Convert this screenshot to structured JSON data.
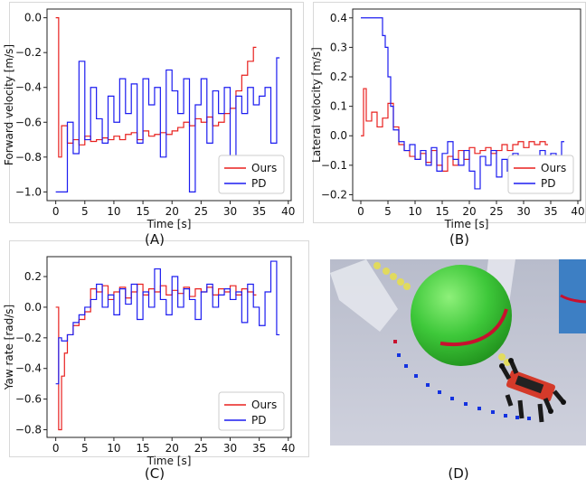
{
  "captions": [
    "(A)",
    "(B)",
    "(C)",
    "(D)"
  ],
  "scene": {
    "description_label": "",
    "colors": {
      "background": "#c9cbd9",
      "sphere": "#3ec83a",
      "robot": "#d43a2a",
      "path": "#c8102e",
      "planned_points": "#1432e0",
      "trail": "#e8e04a",
      "pillar": "#3d7fc4"
    }
  },
  "chart_data": [
    {
      "type": "line",
      "title": "",
      "xlabel": "Time [s]",
      "ylabel": "Forward velocity [m/s]",
      "xlim": [
        -1.5,
        40.5
      ],
      "ylim": [
        -1.05,
        0.05
      ],
      "xticks": [
        "0",
        "5",
        "10",
        "15",
        "20",
        "25",
        "30",
        "35",
        "40"
      ],
      "yticks": [
        "0.0",
        "−0.2",
        "−0.4",
        "−0.6",
        "−0.8",
        "−1.0"
      ],
      "ytick_values": [
        0.0,
        -0.2,
        -0.4,
        -0.6,
        -0.8,
        -1.0
      ],
      "legend_position": "lower-right",
      "series": [
        {
          "name": "Ours",
          "color": "#e8201e",
          "x": [
            0,
            0.5,
            1,
            2,
            3,
            4,
            5,
            6,
            7,
            8,
            9,
            10,
            11,
            12,
            13,
            14,
            15,
            16,
            17,
            18,
            19,
            20,
            21,
            22,
            23,
            24,
            25,
            26,
            27,
            28,
            29,
            30,
            31,
            32,
            33,
            34
          ],
          "y": [
            0,
            -0.8,
            -0.62,
            -0.72,
            -0.7,
            -0.73,
            -0.68,
            -0.71,
            -0.7,
            -0.69,
            -0.7,
            -0.68,
            -0.7,
            -0.67,
            -0.66,
            -0.7,
            -0.65,
            -0.68,
            -0.67,
            -0.66,
            -0.67,
            -0.65,
            -0.63,
            -0.6,
            -0.62,
            -0.58,
            -0.6,
            -0.57,
            -0.62,
            -0.6,
            -0.55,
            -0.52,
            -0.42,
            -0.33,
            -0.25,
            -0.17
          ]
        },
        {
          "name": "PD",
          "color": "#1c1cf0",
          "x": [
            0,
            1,
            2,
            3,
            4,
            5,
            6,
            7,
            8,
            9,
            10,
            11,
            12,
            13,
            14,
            15,
            16,
            17,
            18,
            19,
            20,
            21,
            22,
            23,
            24,
            25,
            26,
            27,
            28,
            29,
            30,
            31,
            32,
            33,
            34,
            35,
            36,
            37,
            38
          ],
          "y": [
            -1.0,
            -1.0,
            -0.6,
            -0.78,
            -0.25,
            -0.7,
            -0.4,
            -0.58,
            -0.72,
            -0.45,
            -0.6,
            -0.35,
            -0.55,
            -0.38,
            -0.72,
            -0.35,
            -0.5,
            -0.4,
            -0.8,
            -0.3,
            -0.42,
            -0.55,
            -0.35,
            -1.0,
            -0.5,
            -0.35,
            -0.72,
            -0.42,
            -0.55,
            -0.4,
            -1.0,
            -0.45,
            -0.55,
            -0.4,
            -0.5,
            -0.45,
            -0.4,
            -0.72,
            -0.23
          ]
        }
      ]
    },
    {
      "type": "line",
      "title": "",
      "xlabel": "Time [s]",
      "ylabel": "Lateral velocity [m/s]",
      "xlim": [
        -1.5,
        40.5
      ],
      "ylim": [
        -0.22,
        0.43
      ],
      "xticks": [
        "0",
        "5",
        "10",
        "15",
        "20",
        "25",
        "30",
        "35",
        "40"
      ],
      "yticks": [
        "0.4",
        "0.3",
        "0.2",
        "0.1",
        "0.0",
        "−0.1",
        "−0.2"
      ],
      "ytick_values": [
        0.4,
        0.3,
        0.2,
        0.1,
        0.0,
        -0.1,
        -0.2
      ],
      "legend_position": "lower-right",
      "series": [
        {
          "name": "Ours",
          "color": "#e8201e",
          "x": [
            0,
            0.5,
            1,
            2,
            3,
            4,
            5,
            6,
            7,
            8,
            9,
            10,
            11,
            12,
            13,
            14,
            15,
            16,
            17,
            18,
            19,
            20,
            21,
            22,
            23,
            24,
            25,
            26,
            27,
            28,
            29,
            30,
            31,
            32,
            33,
            34
          ],
          "y": [
            0,
            0.16,
            0.05,
            0.08,
            0.03,
            0.06,
            0.11,
            0.03,
            -0.03,
            -0.05,
            -0.07,
            -0.08,
            -0.06,
            -0.09,
            -0.05,
            -0.1,
            -0.12,
            -0.07,
            -0.1,
            -0.05,
            -0.08,
            -0.04,
            -0.06,
            -0.05,
            -0.04,
            -0.06,
            -0.05,
            -0.03,
            -0.05,
            -0.03,
            -0.02,
            -0.04,
            -0.02,
            -0.03,
            -0.02,
            -0.03
          ]
        },
        {
          "name": "PD",
          "color": "#1c1cf0",
          "x": [
            0,
            1,
            2,
            3,
            4,
            4.5,
            5,
            5.5,
            6,
            7,
            8,
            9,
            10,
            11,
            12,
            13,
            14,
            15,
            16,
            17,
            18,
            19,
            20,
            21,
            22,
            23,
            24,
            25,
            26,
            27,
            28,
            29,
            30,
            31,
            32,
            33,
            34,
            35,
            36,
            37
          ],
          "y": [
            0.4,
            0.4,
            0.4,
            0.4,
            0.34,
            0.3,
            0.2,
            0.1,
            0.02,
            -0.02,
            -0.05,
            -0.03,
            -0.08,
            -0.05,
            -0.1,
            -0.04,
            -0.12,
            -0.06,
            -0.02,
            -0.08,
            -0.1,
            -0.05,
            -0.12,
            -0.18,
            -0.07,
            -0.1,
            -0.05,
            -0.14,
            -0.08,
            -0.12,
            -0.06,
            -0.1,
            -0.15,
            -0.08,
            -0.12,
            -0.05,
            -0.1,
            -0.06,
            -0.12,
            -0.02
          ]
        }
      ]
    },
    {
      "type": "line",
      "title": "",
      "xlabel": "Time [s]",
      "ylabel": "Yaw rate [rad/s]",
      "xlim": [
        -1.5,
        40.5
      ],
      "ylim": [
        -0.85,
        0.33
      ],
      "xticks": [
        "0",
        "5",
        "10",
        "15",
        "20",
        "25",
        "30",
        "35",
        "40"
      ],
      "yticks": [
        "0.2",
        "0.0",
        "−0.2",
        "−0.4",
        "−0.6",
        "−0.8"
      ],
      "ytick_values": [
        0.2,
        0.0,
        -0.2,
        -0.4,
        -0.6,
        -0.8
      ],
      "legend_position": "lower-right",
      "series": [
        {
          "name": "Ours",
          "color": "#e8201e",
          "x": [
            0,
            0.5,
            1,
            1.5,
            2,
            3,
            4,
            5,
            6,
            7,
            8,
            9,
            10,
            11,
            12,
            13,
            14,
            15,
            16,
            17,
            18,
            19,
            20,
            21,
            22,
            23,
            24,
            25,
            26,
            27,
            28,
            29,
            30,
            31,
            32,
            33,
            34
          ],
          "y": [
            0,
            -0.8,
            -0.45,
            -0.3,
            -0.18,
            -0.12,
            -0.08,
            -0.03,
            0.12,
            0.1,
            0.14,
            0.05,
            0.1,
            0.13,
            0.06,
            0.1,
            0.15,
            0.08,
            0.12,
            0.1,
            0.14,
            0.08,
            0.11,
            0.09,
            0.13,
            0.07,
            0.12,
            0.1,
            0.13,
            0.08,
            0.12,
            0.1,
            0.14,
            0.08,
            0.12,
            0.1,
            0.08
          ]
        },
        {
          "name": "PD",
          "color": "#1c1cf0",
          "x": [
            0,
            0.5,
            1,
            2,
            3,
            4,
            5,
            6,
            7,
            8,
            9,
            10,
            11,
            12,
            13,
            14,
            15,
            16,
            17,
            18,
            19,
            20,
            21,
            22,
            23,
            24,
            25,
            26,
            27,
            28,
            29,
            30,
            31,
            32,
            33,
            34,
            35,
            36,
            37,
            38
          ],
          "y": [
            -0.5,
            -0.2,
            -0.22,
            -0.18,
            -0.1,
            -0.05,
            0.0,
            0.05,
            0.15,
            0.0,
            0.08,
            -0.05,
            0.12,
            0.02,
            0.15,
            -0.08,
            0.1,
            0.0,
            0.25,
            0.05,
            -0.05,
            0.2,
            0.0,
            0.12,
            0.05,
            -0.08,
            0.1,
            0.15,
            0.0,
            0.08,
            0.12,
            0.05,
            0.1,
            -0.1,
            0.15,
            0.0,
            -0.12,
            0.1,
            0.3,
            -0.18
          ]
        }
      ]
    }
  ]
}
